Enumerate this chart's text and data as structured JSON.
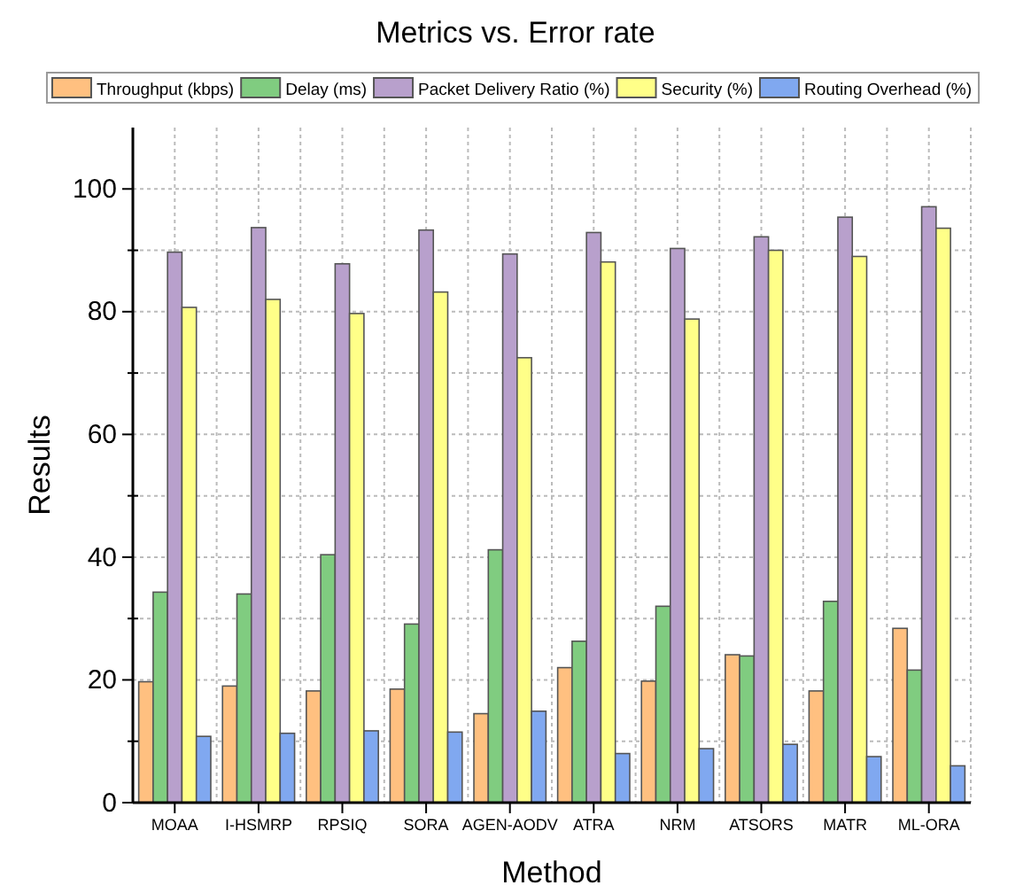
{
  "chart_data": {
    "type": "bar",
    "title": "Metrics vs. Error rate",
    "xlabel": "Method",
    "ylabel": "Results",
    "categories": [
      "MOAA",
      "I-HSMRP",
      "RPSIQ",
      "SORA",
      "AGEN-AODV",
      "ATRA",
      "NRM",
      "ATSORS",
      "MATR",
      "ML-ORA"
    ],
    "series": [
      {
        "name": "Throughput (kbps)",
        "color": "#ffc080",
        "values": [
          19.7,
          19,
          18.2,
          18.5,
          14.5,
          22,
          19.8,
          24.1,
          18.2,
          28.4
        ]
      },
      {
        "name": "Delay (ms)",
        "color": "#80cc80",
        "values": [
          34.3,
          34,
          40.4,
          29.1,
          41.2,
          26.3,
          32,
          23.9,
          32.8,
          21.6
        ]
      },
      {
        "name": "Packet Delivery Ratio (%)",
        "color": "#b8a0cc",
        "values": [
          89.7,
          93.7,
          87.8,
          93.3,
          89.4,
          92.9,
          90.3,
          92.2,
          95.4,
          97.1
        ]
      },
      {
        "name": "Security (%)",
        "color": "#ffff88",
        "values": [
          80.7,
          82,
          79.7,
          83.2,
          72.5,
          88.1,
          78.8,
          90,
          89,
          93.6
        ]
      },
      {
        "name": "Routing Overhead (%)",
        "color": "#80a8f0",
        "values": [
          10.8,
          11.3,
          11.7,
          11.5,
          14.9,
          8,
          8.8,
          9.5,
          7.5,
          6
        ]
      }
    ],
    "ylim": [
      0,
      110
    ],
    "yticks": [
      0,
      {
        "value": 10,
        "label": null
      },
      20,
      {
        "value": 30,
        "label": null
      },
      40,
      {
        "value": 50,
        "label": null
      },
      60,
      {
        "value": 70,
        "label": null
      },
      80,
      {
        "value": 90,
        "label": null
      },
      100
    ],
    "grid": true,
    "legend": "top"
  }
}
